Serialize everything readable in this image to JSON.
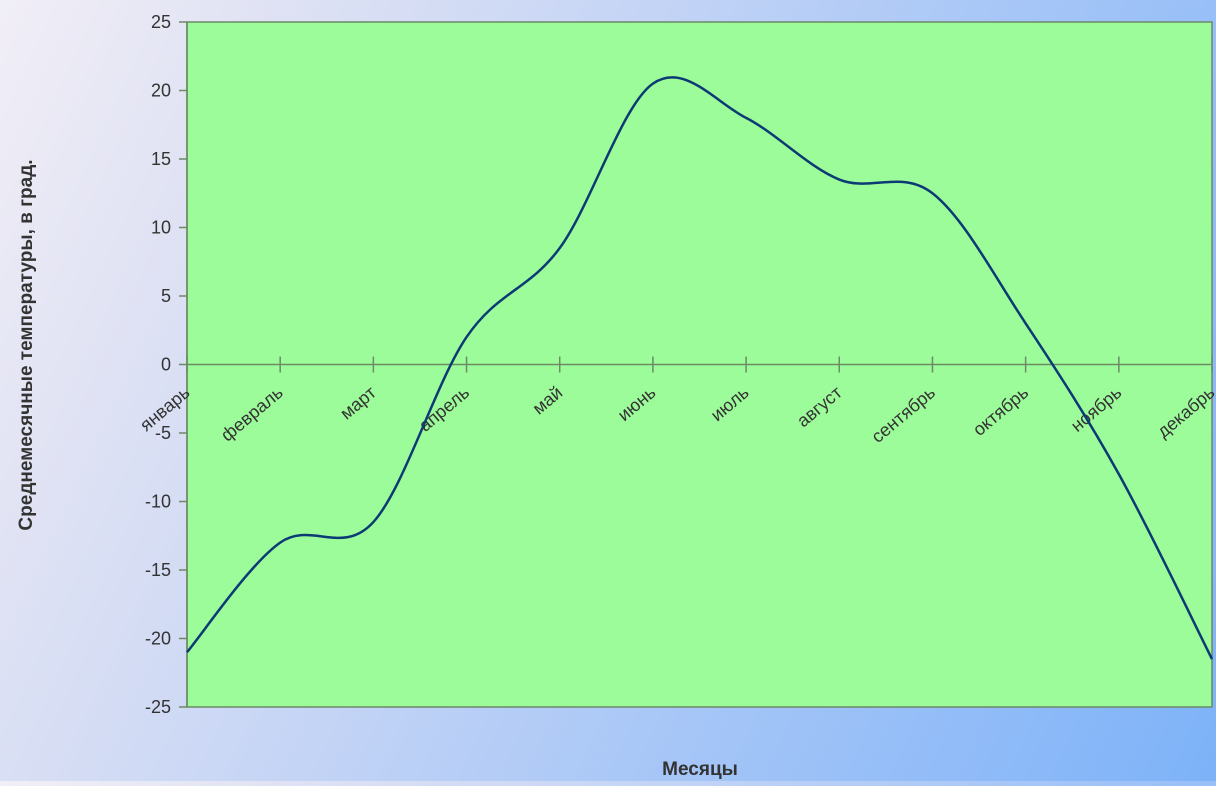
{
  "chart_data": {
    "type": "line",
    "title": "",
    "xlabel": "Месяцы",
    "ylabel": "Среднемесячные температуры, в град.",
    "categories": [
      "январь",
      "февраль",
      "март",
      "апрель",
      "май",
      "июнь",
      "июль",
      "август",
      "сентябрь",
      "октябрь",
      "ноябрь",
      "декабрь"
    ],
    "series": [
      {
        "values": [
          -21,
          -13,
          -11.5,
          2,
          8.5,
          20.5,
          18,
          13.5,
          12.5,
          3,
          -8,
          -21.5
        ]
      }
    ],
    "ylim": [
      -25,
      25
    ],
    "yticks": [
      25,
      20,
      15,
      10,
      5,
      0,
      -5,
      -10,
      -15,
      -20,
      -25
    ],
    "smooth": true,
    "grid": false,
    "legend": "none",
    "colors": {
      "plot_area": "#9dfc9a",
      "line": "#0b3a74",
      "axis": "#6c8a64",
      "text": "#333333"
    }
  }
}
